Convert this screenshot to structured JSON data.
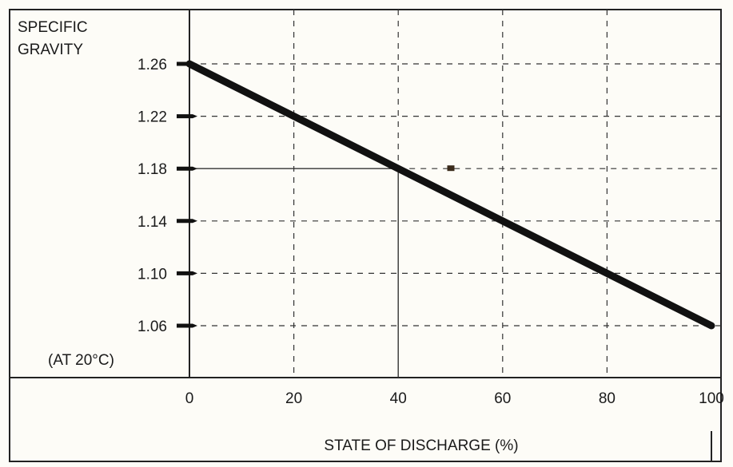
{
  "chart_data": {
    "type": "line",
    "ylabel": "SPECIFIC\nGRAVITY",
    "ylabel_lines": [
      "SPECIFIC",
      "GRAVITY"
    ],
    "ynote": "(AT 20°C)",
    "xlabel": "STATE OF DISCHARGE (%)",
    "x_ticks": [
      0,
      20,
      40,
      60,
      80,
      100
    ],
    "y_ticks": [
      1.26,
      1.22,
      1.18,
      1.14,
      1.1,
      1.06
    ],
    "y_tick_labels": [
      "1.26",
      "1.22",
      "1.18",
      "1.14",
      "1.10",
      "1.06"
    ],
    "x_tick_labels": [
      "0",
      "20",
      "40",
      "60",
      "80",
      "100"
    ],
    "xlim": [
      0,
      100
    ],
    "ylim": [
      1.06,
      1.26
    ],
    "grid": true,
    "series": [
      {
        "x": [
          0,
          100
        ],
        "values": [
          1.26,
          1.06
        ],
        "color": "#111111"
      }
    ],
    "reference_point": {
      "x": 40,
      "y": 1.18
    }
  }
}
